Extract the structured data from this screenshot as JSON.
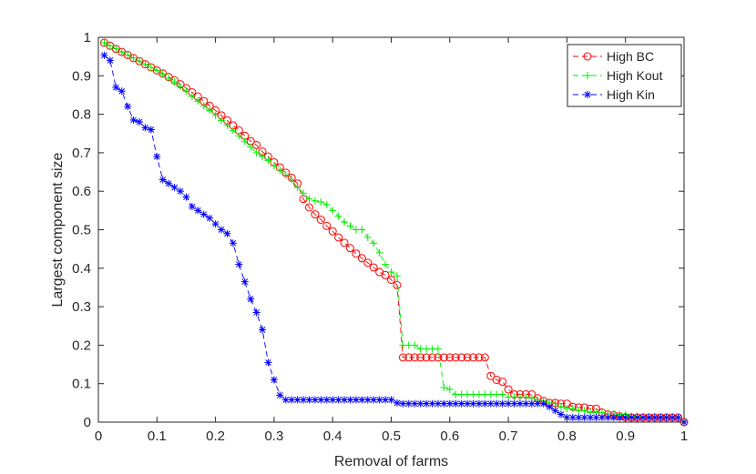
{
  "chart_data": {
    "type": "line",
    "title": "",
    "xlabel": "Removal of farms",
    "ylabel": "Largest component size",
    "xlim": [
      0,
      1
    ],
    "ylim": [
      0,
      1
    ],
    "xticks": [
      "0",
      "0.1",
      "0.2",
      "0.3",
      "0.4",
      "0.5",
      "0.6",
      "0.7",
      "0.8",
      "0.9",
      "1"
    ],
    "yticks": [
      "0",
      "0.1",
      "0.2",
      "0.3",
      "0.4",
      "0.5",
      "0.6",
      "0.7",
      "0.8",
      "0.9",
      "1"
    ],
    "grid": false,
    "legend_position": "top-right",
    "series": [
      {
        "name": "High BC",
        "color": "#ff0000",
        "marker": "circle",
        "linestyle": "dashed",
        "x": [
          0.01,
          0.02,
          0.03,
          0.04,
          0.05,
          0.06,
          0.07,
          0.08,
          0.09,
          0.1,
          0.11,
          0.12,
          0.13,
          0.14,
          0.15,
          0.16,
          0.17,
          0.18,
          0.19,
          0.2,
          0.21,
          0.22,
          0.23,
          0.24,
          0.25,
          0.26,
          0.27,
          0.28,
          0.29,
          0.3,
          0.31,
          0.32,
          0.33,
          0.34,
          0.35,
          0.36,
          0.37,
          0.38,
          0.39,
          0.4,
          0.41,
          0.42,
          0.43,
          0.44,
          0.45,
          0.46,
          0.47,
          0.48,
          0.49,
          0.5,
          0.51,
          0.52,
          0.53,
          0.54,
          0.55,
          0.56,
          0.57,
          0.58,
          0.59,
          0.6,
          0.61,
          0.62,
          0.63,
          0.64,
          0.65,
          0.66,
          0.67,
          0.68,
          0.69,
          0.7,
          0.71,
          0.72,
          0.73,
          0.74,
          0.75,
          0.76,
          0.77,
          0.78,
          0.79,
          0.8,
          0.81,
          0.82,
          0.83,
          0.84,
          0.85,
          0.86,
          0.87,
          0.88,
          0.89,
          0.9,
          0.91,
          0.92,
          0.93,
          0.94,
          0.95,
          0.96,
          0.97,
          0.98,
          0.99,
          1.0
        ],
        "y": [
          0.986,
          0.978,
          0.97,
          0.962,
          0.954,
          0.946,
          0.938,
          0.93,
          0.922,
          0.914,
          0.906,
          0.897,
          0.888,
          0.878,
          0.868,
          0.857,
          0.846,
          0.834,
          0.822,
          0.81,
          0.797,
          0.784,
          0.771,
          0.758,
          0.744,
          0.73,
          0.72,
          0.703,
          0.69,
          0.675,
          0.662,
          0.648,
          0.635,
          0.62,
          0.58,
          0.558,
          0.54,
          0.526,
          0.51,
          0.496,
          0.48,
          0.466,
          0.452,
          0.438,
          0.426,
          0.414,
          0.402,
          0.39,
          0.382,
          0.37,
          0.356,
          0.168,
          0.168,
          0.168,
          0.168,
          0.168,
          0.168,
          0.168,
          0.168,
          0.168,
          0.168,
          0.168,
          0.168,
          0.168,
          0.168,
          0.168,
          0.12,
          0.11,
          0.105,
          0.085,
          0.072,
          0.072,
          0.072,
          0.072,
          0.062,
          0.055,
          0.05,
          0.05,
          0.048,
          0.048,
          0.04,
          0.038,
          0.038,
          0.035,
          0.035,
          0.025,
          0.02,
          0.018,
          0.015,
          0.013,
          0.012,
          0.012,
          0.012,
          0.012,
          0.012,
          0.012,
          0.012,
          0.012,
          0.012,
          0.0
        ]
      },
      {
        "name": "High Kout",
        "color": "#00ee00",
        "marker": "plus",
        "linestyle": "dashed",
        "x": [
          0.01,
          0.02,
          0.03,
          0.04,
          0.05,
          0.06,
          0.07,
          0.08,
          0.09,
          0.1,
          0.11,
          0.12,
          0.13,
          0.14,
          0.15,
          0.16,
          0.17,
          0.18,
          0.19,
          0.2,
          0.21,
          0.22,
          0.23,
          0.24,
          0.25,
          0.26,
          0.27,
          0.28,
          0.29,
          0.3,
          0.31,
          0.32,
          0.33,
          0.34,
          0.35,
          0.36,
          0.37,
          0.38,
          0.39,
          0.4,
          0.41,
          0.42,
          0.43,
          0.44,
          0.45,
          0.46,
          0.47,
          0.48,
          0.49,
          0.5,
          0.51,
          0.52,
          0.53,
          0.54,
          0.55,
          0.56,
          0.57,
          0.58,
          0.59,
          0.6,
          0.61,
          0.62,
          0.63,
          0.64,
          0.65,
          0.66,
          0.67,
          0.68,
          0.69,
          0.7,
          0.71,
          0.72,
          0.73,
          0.74,
          0.75,
          0.76,
          0.77,
          0.78,
          0.79,
          0.8,
          0.81,
          0.82,
          0.83,
          0.84,
          0.85,
          0.86,
          0.87,
          0.88,
          0.89,
          0.9,
          0.91,
          0.92,
          0.93,
          0.94,
          0.95,
          0.96,
          0.97,
          0.98,
          0.99,
          1.0
        ],
        "y": [
          0.986,
          0.978,
          0.97,
          0.962,
          0.954,
          0.946,
          0.938,
          0.93,
          0.922,
          0.914,
          0.904,
          0.894,
          0.884,
          0.872,
          0.86,
          0.846,
          0.834,
          0.822,
          0.81,
          0.797,
          0.784,
          0.771,
          0.758,
          0.744,
          0.73,
          0.715,
          0.7,
          0.69,
          0.68,
          0.666,
          0.655,
          0.642,
          0.63,
          0.61,
          0.595,
          0.58,
          0.575,
          0.572,
          0.565,
          0.55,
          0.535,
          0.52,
          0.51,
          0.5,
          0.5,
          0.48,
          0.465,
          0.44,
          0.41,
          0.39,
          0.38,
          0.2,
          0.2,
          0.2,
          0.19,
          0.19,
          0.19,
          0.19,
          0.09,
          0.085,
          0.072,
          0.072,
          0.072,
          0.072,
          0.072,
          0.072,
          0.072,
          0.072,
          0.072,
          0.065,
          0.065,
          0.065,
          0.065,
          0.062,
          0.058,
          0.055,
          0.05,
          0.048,
          0.04,
          0.035,
          0.035,
          0.03,
          0.03,
          0.025,
          0.025,
          0.025,
          0.022,
          0.022,
          0.02,
          0.02,
          0.015,
          0.015,
          0.012,
          0.012,
          0.012,
          0.012,
          0.012,
          0.012,
          0.012,
          0.0
        ]
      },
      {
        "name": "High Kin",
        "color": "#0000ff",
        "marker": "asterisk",
        "linestyle": "dashed",
        "x": [
          0.01,
          0.02,
          0.03,
          0.04,
          0.05,
          0.06,
          0.07,
          0.08,
          0.09,
          0.1,
          0.11,
          0.12,
          0.13,
          0.14,
          0.15,
          0.16,
          0.17,
          0.18,
          0.19,
          0.2,
          0.21,
          0.22,
          0.23,
          0.24,
          0.25,
          0.26,
          0.27,
          0.28,
          0.29,
          0.3,
          0.31,
          0.32,
          0.33,
          0.34,
          0.35,
          0.36,
          0.37,
          0.38,
          0.39,
          0.4,
          0.41,
          0.42,
          0.43,
          0.44,
          0.45,
          0.46,
          0.47,
          0.48,
          0.49,
          0.5,
          0.51,
          0.52,
          0.53,
          0.54,
          0.55,
          0.56,
          0.57,
          0.58,
          0.59,
          0.6,
          0.61,
          0.62,
          0.63,
          0.64,
          0.65,
          0.66,
          0.67,
          0.68,
          0.69,
          0.7,
          0.71,
          0.72,
          0.73,
          0.74,
          0.75,
          0.76,
          0.77,
          0.78,
          0.79,
          0.8,
          0.81,
          0.82,
          0.83,
          0.84,
          0.85,
          0.86,
          0.87,
          0.88,
          0.89,
          0.9,
          0.91,
          0.92,
          0.93,
          0.94,
          0.95,
          0.96,
          0.97,
          0.98,
          0.99,
          1.0
        ],
        "y": [
          0.953,
          0.94,
          0.87,
          0.86,
          0.82,
          0.785,
          0.78,
          0.765,
          0.76,
          0.69,
          0.63,
          0.62,
          0.61,
          0.6,
          0.585,
          0.56,
          0.55,
          0.54,
          0.53,
          0.515,
          0.5,
          0.49,
          0.465,
          0.41,
          0.365,
          0.32,
          0.285,
          0.24,
          0.155,
          0.11,
          0.07,
          0.058,
          0.058,
          0.058,
          0.058,
          0.058,
          0.058,
          0.058,
          0.058,
          0.058,
          0.058,
          0.058,
          0.058,
          0.058,
          0.058,
          0.058,
          0.058,
          0.058,
          0.058,
          0.058,
          0.05,
          0.048,
          0.048,
          0.048,
          0.048,
          0.048,
          0.048,
          0.048,
          0.048,
          0.048,
          0.048,
          0.048,
          0.048,
          0.048,
          0.048,
          0.048,
          0.048,
          0.048,
          0.048,
          0.048,
          0.048,
          0.048,
          0.048,
          0.048,
          0.048,
          0.048,
          0.04,
          0.03,
          0.02,
          0.012,
          0.012,
          0.012,
          0.012,
          0.012,
          0.012,
          0.012,
          0.012,
          0.012,
          0.012,
          0.012,
          0.012,
          0.012,
          0.012,
          0.012,
          0.012,
          0.012,
          0.012,
          0.012,
          0.012,
          0.0
        ]
      }
    ]
  }
}
